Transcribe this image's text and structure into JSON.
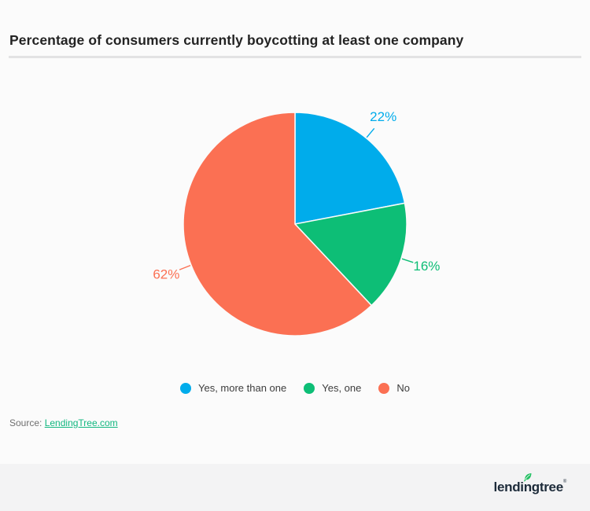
{
  "header": {
    "title": "Percentage of consumers currently boycotting at least one company"
  },
  "chart_data": {
    "type": "pie",
    "title": "Percentage of consumers currently boycotting at least one company",
    "categories": [
      "Yes, more than one",
      "Yes, one",
      "No"
    ],
    "values": [
      22,
      16,
      62
    ],
    "slice_labels": [
      "22%",
      "16%",
      "62%"
    ],
    "colors": [
      "#00aceb",
      "#0dbe76",
      "#fb7053"
    ],
    "start_angle_deg": 0,
    "direction": "clockwise",
    "legend_position": "bottom"
  },
  "source": {
    "prefix": "Source: ",
    "link_text": "LendingTree.com",
    "link_color": "#10b77f"
  },
  "footer": {
    "logo_text": "lendingtree",
    "logo_trademark": "®",
    "logo_leaf_color": "#21c161"
  }
}
